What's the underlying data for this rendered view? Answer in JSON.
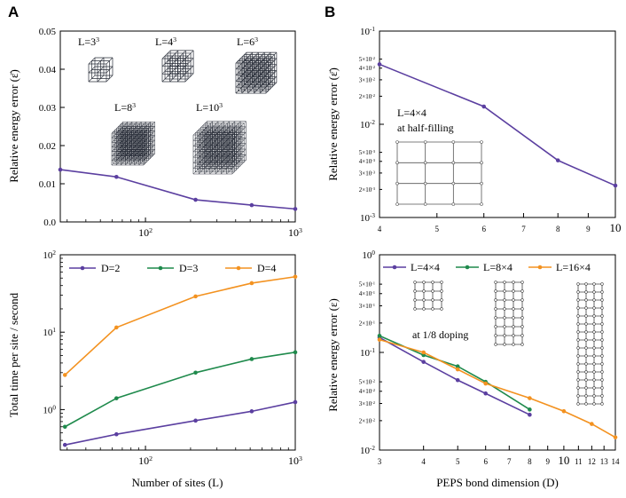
{
  "panels": {
    "a": "A",
    "b": "B"
  },
  "colors": {
    "purple": "#5b3fa0",
    "green": "#1f8a4c",
    "orange": "#f39220",
    "axis": "#000000",
    "lattice": "#2a2f3a"
  },
  "chart_data": [
    {
      "id": "a_top",
      "panel": "A",
      "type": "line",
      "xscale": "log",
      "yscale": "linear",
      "xlim": [
        27,
        1000
      ],
      "ylim": [
        0,
        0.05
      ],
      "xlabel": "",
      "ylabel": "Relative energy error (ε̄)",
      "yticks": [
        {
          "v": 0.0,
          "label": "0.0"
        },
        {
          "v": 0.01,
          "label": "0.01"
        },
        {
          "v": 0.02,
          "label": "0.02"
        },
        {
          "v": 0.03,
          "label": "0.03"
        },
        {
          "v": 0.04,
          "label": "0.04"
        },
        {
          "v": 0.05,
          "label": "0.05"
        }
      ],
      "xticks": [
        {
          "v": 100,
          "label": "10",
          "exp": "2"
        },
        {
          "v": 1000,
          "label": "10",
          "exp": "3"
        }
      ],
      "series": [
        {
          "name": "",
          "color": "#5b3fa0",
          "x": [
            27,
            64,
            216,
            512,
            1000
          ],
          "y": [
            0.0137,
            0.0118,
            0.0058,
            0.0044,
            0.0034
          ]
        }
      ],
      "insets": [
        {
          "label": "L=3",
          "exp": "3",
          "n": 3
        },
        {
          "label": "L=4",
          "exp": "3",
          "n": 4
        },
        {
          "label": "L=6",
          "exp": "3",
          "n": 6
        },
        {
          "label": "L=8",
          "exp": "3",
          "n": 8
        },
        {
          "label": "L=10",
          "exp": "3",
          "n": 10
        }
      ]
    },
    {
      "id": "a_bottom",
      "panel": "A",
      "type": "line",
      "xscale": "log",
      "yscale": "log",
      "xlim": [
        27,
        1000
      ],
      "ylim": [
        0.3,
        100
      ],
      "xlabel": "Number of sites (L)",
      "ylabel": "Total time per site / second",
      "yticks": [
        {
          "v": 1,
          "label": "10",
          "exp": "0"
        },
        {
          "v": 10,
          "label": "10",
          "exp": "1"
        },
        {
          "v": 100,
          "label": "10",
          "exp": "2"
        }
      ],
      "xticks": [
        {
          "v": 100,
          "label": "10",
          "exp": "2"
        },
        {
          "v": 1000,
          "label": "10",
          "exp": "3"
        }
      ],
      "series": [
        {
          "name": "D=2",
          "color": "#5b3fa0",
          "x": [
            29,
            64,
            216,
            512,
            1000
          ],
          "y": [
            0.35,
            0.48,
            0.72,
            0.95,
            1.25
          ]
        },
        {
          "name": "D=3",
          "color": "#1f8a4c",
          "x": [
            29,
            64,
            216,
            512,
            1000
          ],
          "y": [
            0.6,
            1.4,
            3.0,
            4.5,
            5.5
          ]
        },
        {
          "name": "D=4",
          "color": "#f39220",
          "x": [
            29,
            64,
            216,
            512,
            1000
          ],
          "y": [
            2.8,
            11.5,
            29,
            43,
            52
          ]
        }
      ]
    },
    {
      "id": "b_top",
      "panel": "B",
      "type": "line",
      "xscale": "log",
      "yscale": "log",
      "xlim": [
        4,
        10
      ],
      "ylim": [
        0.001,
        0.1
      ],
      "xlabel": "",
      "ylabel": "Relative energy error (ε̄)",
      "yticks": [
        {
          "v": 0.1,
          "label": "10",
          "exp": "-1",
          "major": true
        },
        {
          "v": 0.05,
          "label": "5×10",
          "exp": "-2"
        },
        {
          "v": 0.04,
          "label": "4×10",
          "exp": "-2"
        },
        {
          "v": 0.03,
          "label": "3×10",
          "exp": "-2"
        },
        {
          "v": 0.02,
          "label": "2×10",
          "exp": "-2"
        },
        {
          "v": 0.01,
          "label": "10",
          "exp": "-2",
          "major": true
        },
        {
          "v": 0.005,
          "label": "5×10",
          "exp": "-3"
        },
        {
          "v": 0.004,
          "label": "4×10",
          "exp": "-3"
        },
        {
          "v": 0.003,
          "label": "3×10",
          "exp": "-3"
        },
        {
          "v": 0.002,
          "label": "2×10",
          "exp": "-3"
        },
        {
          "v": 0.001,
          "label": "10",
          "exp": "-3",
          "major": true
        }
      ],
      "xticks": [
        {
          "v": 4,
          "label": "4"
        },
        {
          "v": 5,
          "label": "5"
        },
        {
          "v": 6,
          "label": "6"
        },
        {
          "v": 7,
          "label": "7"
        },
        {
          "v": 8,
          "label": "8"
        },
        {
          "v": 9,
          "label": "9"
        },
        {
          "v": 10,
          "label": "10",
          "big": true
        }
      ],
      "series": [
        {
          "name": "",
          "color": "#5b3fa0",
          "x": [
            4,
            6,
            8,
            10
          ],
          "y": [
            0.044,
            0.0155,
            0.0041,
            0.0022
          ]
        }
      ],
      "inset_title": "L=4×4",
      "inset_subtitle": "at half-filling"
    },
    {
      "id": "b_bottom",
      "panel": "B",
      "type": "line",
      "xscale": "log",
      "yscale": "log",
      "xlim": [
        3,
        14
      ],
      "ylim": [
        0.01,
        1
      ],
      "xlabel": "PEPS bond dimension (D)",
      "ylabel": "Relative energy error (ε)",
      "yticks": [
        {
          "v": 1,
          "label": "10",
          "exp": "0",
          "major": true
        },
        {
          "v": 0.5,
          "label": "5×10",
          "exp": "-1"
        },
        {
          "v": 0.4,
          "label": "4×10",
          "exp": "-1"
        },
        {
          "v": 0.3,
          "label": "3×10",
          "exp": "-1"
        },
        {
          "v": 0.2,
          "label": "2×10",
          "exp": "-1"
        },
        {
          "v": 0.1,
          "label": "10",
          "exp": "-1",
          "major": true
        },
        {
          "v": 0.05,
          "label": "5×10",
          "exp": "-2"
        },
        {
          "v": 0.04,
          "label": "4×10",
          "exp": "-2"
        },
        {
          "v": 0.03,
          "label": "3×10",
          "exp": "-2"
        },
        {
          "v": 0.02,
          "label": "2×10",
          "exp": "-2"
        },
        {
          "v": 0.01,
          "label": "10",
          "exp": "-2",
          "major": true
        }
      ],
      "xticks": [
        {
          "v": 3,
          "label": "3"
        },
        {
          "v": 4,
          "label": "4"
        },
        {
          "v": 5,
          "label": "5"
        },
        {
          "v": 6,
          "label": "6"
        },
        {
          "v": 7,
          "label": "7"
        },
        {
          "v": 8,
          "label": "8"
        },
        {
          "v": 9,
          "label": "9"
        },
        {
          "v": 10,
          "label": "10",
          "big": true
        },
        {
          "v": 11,
          "label": "11"
        },
        {
          "v": 12,
          "label": "12"
        },
        {
          "v": 13,
          "label": "13"
        },
        {
          "v": 14,
          "label": "14"
        }
      ],
      "series": [
        {
          "name": "L=4×4",
          "color": "#5b3fa0",
          "x": [
            3,
            4,
            5,
            6,
            8
          ],
          "y": [
            0.142,
            0.08,
            0.052,
            0.038,
            0.023
          ]
        },
        {
          "name": "L=8×4",
          "color": "#1f8a4c",
          "x": [
            3,
            4,
            5,
            6,
            8
          ],
          "y": [
            0.148,
            0.094,
            0.072,
            0.05,
            0.026
          ]
        },
        {
          "name": "L=16×4",
          "color": "#f39220",
          "x": [
            3,
            4,
            5,
            6,
            8,
            10,
            12,
            14
          ],
          "y": [
            0.135,
            0.1,
            0.067,
            0.048,
            0.034,
            0.025,
            0.0185,
            0.0135
          ]
        }
      ],
      "inset_note": "at 1/8 doping"
    }
  ]
}
